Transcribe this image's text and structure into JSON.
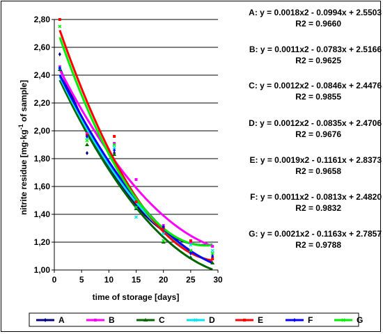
{
  "chart_data": {
    "type": "scatter",
    "xlabel": "time of storage [days]",
    "ylabel_parts": [
      "nitrite residue [mg·kg",
      "-1",
      " of sample]"
    ],
    "xlim": [
      0,
      30
    ],
    "ylim": [
      1.0,
      2.8
    ],
    "x_ticks": [
      0,
      5,
      10,
      15,
      20,
      25,
      30
    ],
    "x_tick_labels": [
      "0",
      "5",
      "10",
      "15",
      "20",
      "25",
      "30"
    ],
    "y_ticks": [
      1.0,
      1.2,
      1.4,
      1.6,
      1.8,
      2.0,
      2.2,
      2.4,
      2.6,
      2.8
    ],
    "y_tick_labels": [
      "1,00",
      "1,20",
      "1,40",
      "1,60",
      "1,80",
      "2,00",
      "2,20",
      "2,40",
      "2,60",
      "2,80"
    ],
    "x": [
      1,
      6,
      11,
      15,
      20,
      25,
      29
    ],
    "series": [
      {
        "name": "A",
        "color": "#000080",
        "marker": "diamond",
        "values": [
          2.55,
          1.84,
          1.84,
          1.45,
          1.3,
          1.12,
          1.09
        ],
        "fit": [
          0.0018,
          -0.0994,
          2.5503
        ],
        "equation": "A: y = 0.0018x2 - 0.0994x + 2.5503",
        "r2": "R2 = 0.9660"
      },
      {
        "name": "B",
        "color": "#ff00ff",
        "marker": "square",
        "values": [
          2.46,
          1.98,
          1.91,
          1.65,
          1.32,
          1.2,
          1.17
        ],
        "fit": [
          0.0011,
          -0.0783,
          2.5166
        ],
        "equation": "B: y = 0.0011x2 - 0.0783x + 2.5166",
        "r2": "R2 = 0.9625"
      },
      {
        "name": "C",
        "color": "#006400",
        "marker": "triangle",
        "values": [
          2.44,
          1.9,
          1.83,
          1.44,
          1.2,
          1.09,
          1.05
        ],
        "fit": [
          0.0012,
          -0.0846,
          2.4476
        ],
        "equation": "C: y = 0.0012x2 - 0.0846x + 2.4476",
        "r2": "R2 = 0.9855"
      },
      {
        "name": "D",
        "color": "#00e5ee",
        "marker": "x",
        "values": [
          2.45,
          1.95,
          1.88,
          1.38,
          1.26,
          1.18,
          1.14
        ],
        "fit": [
          0.0012,
          -0.0835,
          2.4706
        ],
        "equation": "D: y = 0.0012x2 - 0.0835x + 2.4706",
        "r2": "R2 = 0.9676"
      },
      {
        "name": "E",
        "color": "#ff0000",
        "marker": "square",
        "values": [
          2.8,
          1.97,
          1.96,
          1.49,
          1.3,
          1.21,
          1.08
        ],
        "fit": [
          0.0019,
          -0.1161,
          2.8373
        ],
        "equation": "E: y = 0.0019x2 - 0.1161x + 2.8373",
        "r2": "R2 = 0.9658"
      },
      {
        "name": "F",
        "color": "#0000ff",
        "marker": "diamond",
        "values": [
          2.45,
          1.96,
          1.86,
          1.45,
          1.31,
          1.12,
          1.1
        ],
        "fit": [
          0.0011,
          -0.0813,
          2.482
        ],
        "equation": "F: y = 0.0011x2 - 0.0813x + 2.4820",
        "r2": "R2 = 0.9832"
      },
      {
        "name": "G",
        "color": "#00ee00",
        "marker": "x",
        "values": [
          2.75,
          1.93,
          1.9,
          1.45,
          1.21,
          1.14,
          1.12
        ],
        "fit": [
          0.0021,
          -0.1163,
          2.7857
        ],
        "equation": "G: y = 0.0021x2 - 0.1163x + 2.7857",
        "r2": "R2 = 0.9788"
      }
    ],
    "legend_position": "bottom"
  }
}
